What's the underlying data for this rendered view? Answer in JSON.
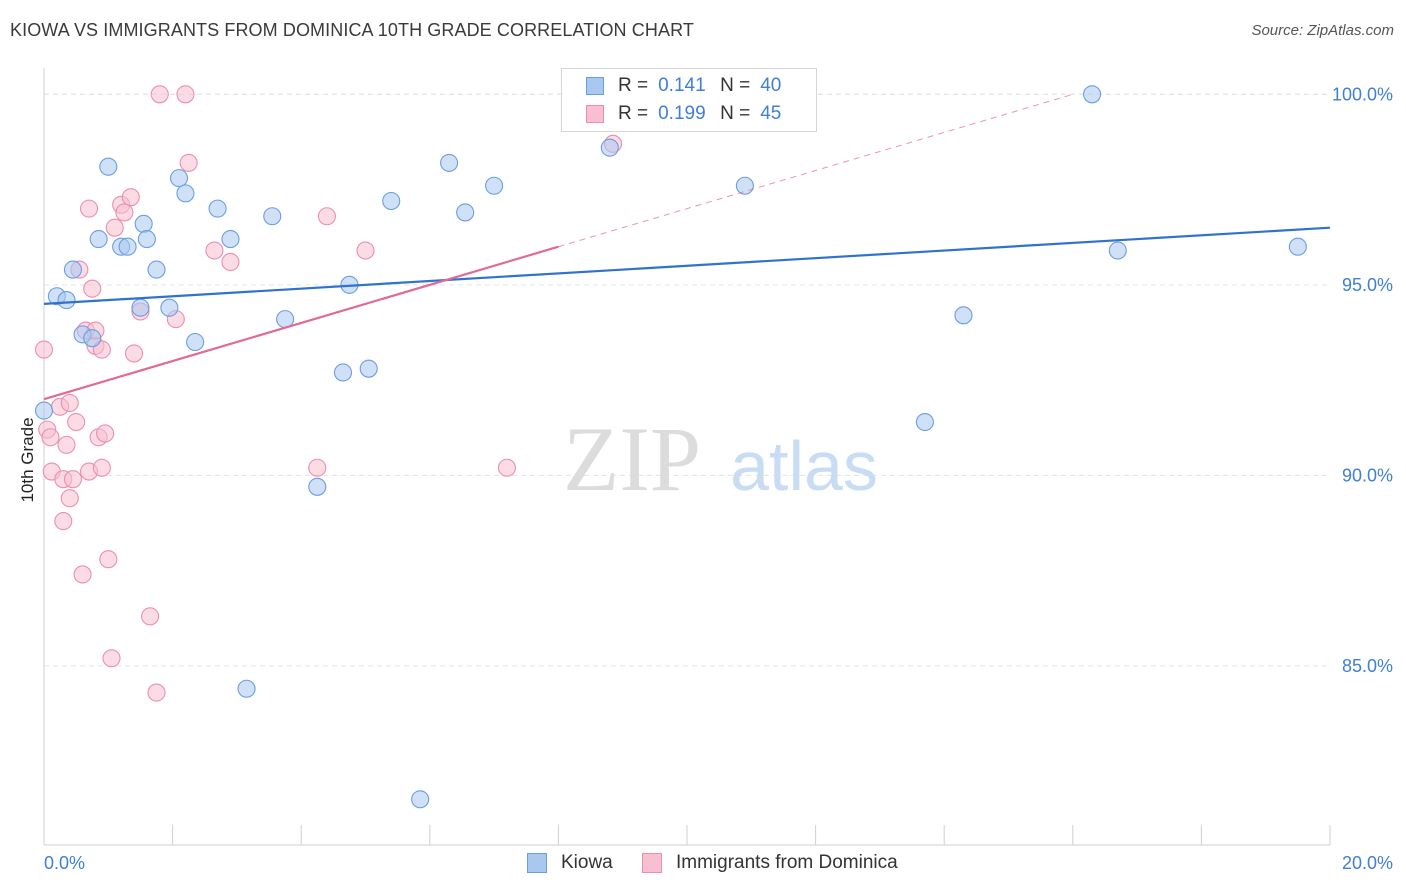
{
  "title": "KIOWA VS IMMIGRANTS FROM DOMINICA 10TH GRADE CORRELATION CHART",
  "source": "Source: ZipAtlas.com",
  "watermark": {
    "zip": "ZIP",
    "atlas": "atlas"
  },
  "stats": {
    "rows": [
      {
        "r_label": "R =",
        "r_value": "0.141",
        "n_label": "N =",
        "n_value": "40"
      },
      {
        "r_label": "R =",
        "r_value": "0.199",
        "n_label": "N =",
        "n_value": "45"
      }
    ]
  },
  "colors": {
    "kiowa_fill": "#a9c8f0",
    "kiowa_stroke": "#6a9ee0",
    "kiowa_line": "#2f72d0",
    "dominica_fill": "#f7bfd0",
    "dominica_stroke": "#ec8fae",
    "dominica_line": "#e06b96",
    "tick_text": "#3f7fd6",
    "grid": "#e3e3e3"
  },
  "legend": [
    {
      "label": "Kiowa"
    },
    {
      "label": "Immigrants from Dominica"
    }
  ],
  "chart_data": {
    "type": "scatter",
    "title": "KIOWA VS IMMIGRANTS FROM DOMINICA 10TH GRADE CORRELATION CHART",
    "xlabel": "",
    "ylabel": "10th Grade",
    "xlim": [
      0,
      20
    ],
    "ylim": [
      80.3,
      100.9
    ],
    "x_tick_labels": [
      "0.0%",
      "20.0%"
    ],
    "y_ticks": [
      85,
      90,
      95,
      100
    ],
    "y_tick_labels": [
      "85.0%",
      "90.0%",
      "95.0%",
      "100.0%"
    ],
    "grid": true,
    "legend_position": "bottom",
    "series": [
      {
        "name": "Kiowa",
        "points": [
          [
            0.0,
            91.7
          ],
          [
            0.2,
            94.7
          ],
          [
            0.35,
            94.6
          ],
          [
            0.45,
            95.4
          ],
          [
            0.6,
            93.7
          ],
          [
            0.75,
            93.6
          ],
          [
            0.85,
            96.2
          ],
          [
            1.0,
            98.1
          ],
          [
            1.2,
            96.0
          ],
          [
            1.3,
            96.0
          ],
          [
            1.5,
            94.4
          ],
          [
            1.55,
            96.6
          ],
          [
            1.6,
            96.2
          ],
          [
            1.75,
            95.4
          ],
          [
            1.95,
            94.4
          ],
          [
            2.1,
            97.8
          ],
          [
            2.2,
            97.4
          ],
          [
            2.35,
            93.5
          ],
          [
            2.7,
            97.0
          ],
          [
            2.9,
            96.2
          ],
          [
            3.15,
            84.4
          ],
          [
            3.55,
            96.8
          ],
          [
            3.75,
            94.1
          ],
          [
            4.25,
            89.7
          ],
          [
            4.65,
            92.7
          ],
          [
            4.75,
            95.0
          ],
          [
            5.05,
            92.8
          ],
          [
            5.4,
            97.2
          ],
          [
            5.85,
            81.5
          ],
          [
            6.3,
            98.2
          ],
          [
            6.55,
            96.9
          ],
          [
            7.0,
            97.6
          ],
          [
            8.8,
            98.6
          ],
          [
            8.8,
            100.0
          ],
          [
            10.9,
            97.6
          ],
          [
            13.7,
            91.4
          ],
          [
            14.3,
            94.2
          ],
          [
            16.3,
            100.0
          ],
          [
            16.7,
            95.9
          ],
          [
            19.5,
            96.0
          ]
        ]
      },
      {
        "name": "Immigrants from Dominica",
        "points": [
          [
            0.0,
            93.3
          ],
          [
            0.05,
            91.2
          ],
          [
            0.1,
            91.0
          ],
          [
            0.12,
            90.1
          ],
          [
            0.25,
            91.8
          ],
          [
            0.3,
            89.9
          ],
          [
            0.3,
            88.8
          ],
          [
            0.35,
            90.8
          ],
          [
            0.4,
            91.9
          ],
          [
            0.4,
            89.4
          ],
          [
            0.45,
            89.9
          ],
          [
            0.5,
            91.4
          ],
          [
            0.55,
            95.4
          ],
          [
            0.6,
            87.4
          ],
          [
            0.65,
            93.8
          ],
          [
            0.7,
            90.1
          ],
          [
            0.7,
            97.0
          ],
          [
            0.75,
            94.9
          ],
          [
            0.8,
            93.4
          ],
          [
            0.8,
            93.8
          ],
          [
            0.85,
            91.0
          ],
          [
            0.9,
            90.2
          ],
          [
            0.9,
            93.3
          ],
          [
            0.95,
            91.1
          ],
          [
            1.0,
            87.8
          ],
          [
            1.05,
            85.2
          ],
          [
            1.1,
            96.5
          ],
          [
            1.2,
            97.1
          ],
          [
            1.25,
            96.9
          ],
          [
            1.35,
            97.3
          ],
          [
            1.4,
            93.2
          ],
          [
            1.5,
            94.3
          ],
          [
            1.65,
            86.3
          ],
          [
            1.75,
            84.3
          ],
          [
            1.8,
            100.0
          ],
          [
            2.05,
            94.1
          ],
          [
            2.2,
            100.0
          ],
          [
            2.25,
            98.2
          ],
          [
            2.65,
            95.9
          ],
          [
            2.9,
            95.6
          ],
          [
            4.25,
            90.2
          ],
          [
            4.4,
            96.8
          ],
          [
            5.0,
            95.9
          ],
          [
            7.2,
            90.2
          ],
          [
            8.85,
            98.7
          ]
        ]
      }
    ],
    "trend_lines": [
      {
        "name": "Kiowa",
        "x": [
          0,
          20
        ],
        "y": [
          94.5,
          96.5
        ],
        "style": "solid"
      },
      {
        "name": "Immigrants from Dominica",
        "x": [
          0,
          8
        ],
        "y": [
          92.0,
          96.0
        ],
        "style": "solid"
      },
      {
        "name": "Immigrants from Dominica",
        "x": [
          8,
          16
        ],
        "y": [
          96.0,
          100.0
        ],
        "style": "dashed"
      }
    ]
  }
}
